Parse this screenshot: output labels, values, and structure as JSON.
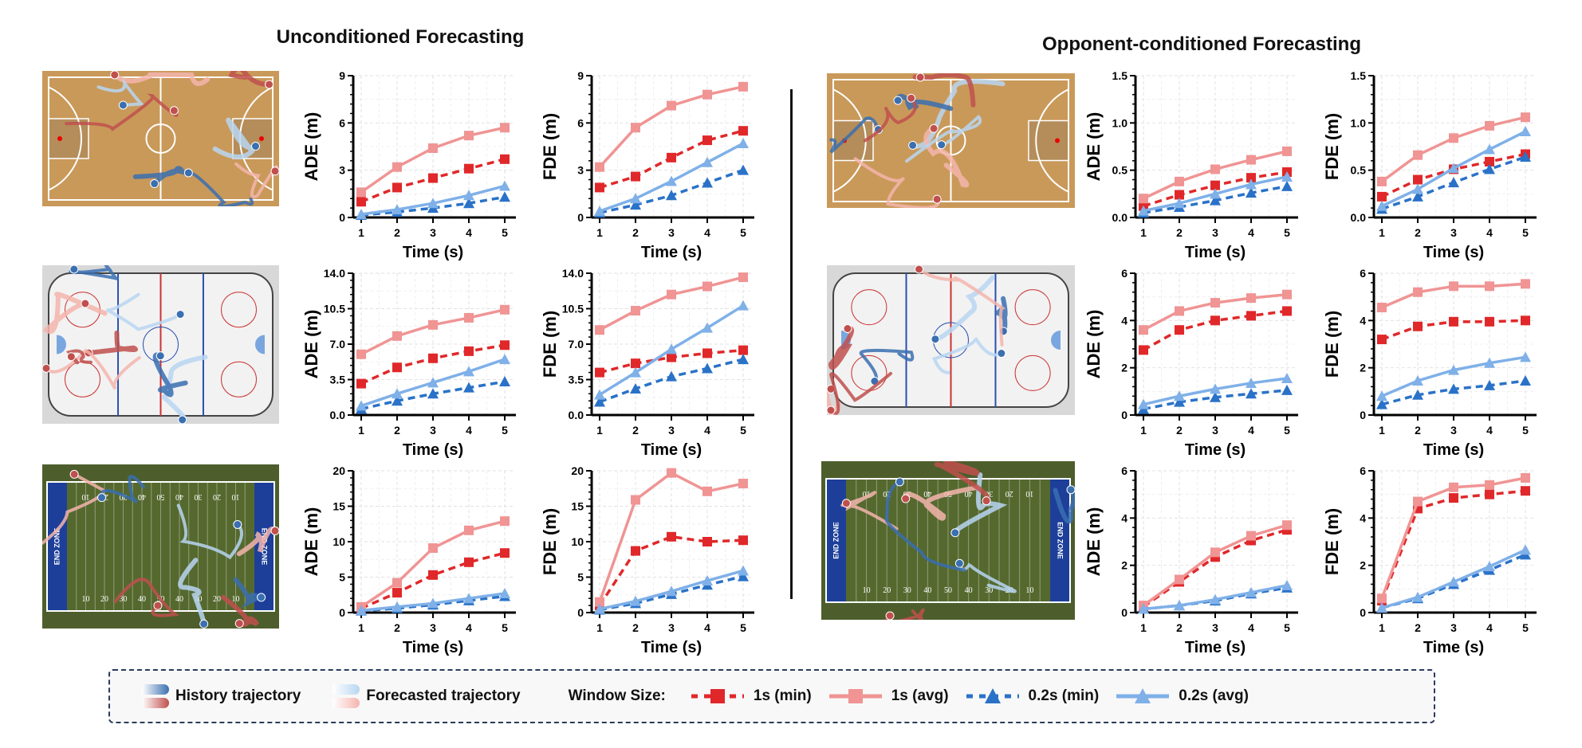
{
  "titles": {
    "left": "Unconditioned Forecasting",
    "right": "Opponent-conditioned Forecasting"
  },
  "colors": {
    "min_1s": "#e0282a",
    "avg_1s": "#f09494",
    "min_02s": "#2a72c8",
    "avg_02s": "#7fb0e8",
    "history_blue": "#3a6fb0",
    "history_red": "#c0504d",
    "forecast_blue": "#b8d6f2",
    "forecast_red": "#f5b5ad"
  },
  "fields": {
    "end_zone": "END ZONE",
    "yard_numbers": [
      "10",
      "20",
      "30",
      "40",
      "50",
      "40",
      "30",
      "20",
      "10"
    ]
  },
  "legend": {
    "history": "History trajectory",
    "forecast": "Forecasted trajectory",
    "window_label": "Window Size:",
    "series": [
      "1s (min)",
      "1s (avg)",
      "0.2s (min)",
      "0.2s (avg)"
    ]
  },
  "chart_data": [
    {
      "id": "uncond-basketball-ade",
      "type": "line",
      "xlabel": "Time (s)",
      "ylabel": "ADE (m)",
      "x": [
        1,
        2,
        3,
        4,
        5
      ],
      "ylim": [
        0,
        9
      ],
      "yticks": [
        "0",
        "3",
        "6",
        "9"
      ],
      "grid": true,
      "series": [
        {
          "name": "1s (min)",
          "values": [
            1.0,
            1.9,
            2.5,
            3.1,
            3.7
          ]
        },
        {
          "name": "1s (avg)",
          "values": [
            1.6,
            3.2,
            4.4,
            5.2,
            5.7
          ]
        },
        {
          "name": "0.2s (min)",
          "values": [
            0.15,
            0.35,
            0.6,
            0.9,
            1.3
          ]
        },
        {
          "name": "0.2s (avg)",
          "values": [
            0.2,
            0.5,
            0.9,
            1.4,
            2.0
          ]
        }
      ]
    },
    {
      "id": "uncond-basketball-fde",
      "type": "line",
      "xlabel": "Time (s)",
      "ylabel": "FDE (m)",
      "x": [
        1,
        2,
        3,
        4,
        5
      ],
      "ylim": [
        0,
        9
      ],
      "yticks": [
        "0",
        "3",
        "6",
        "9"
      ],
      "grid": true,
      "series": [
        {
          "name": "1s (min)",
          "values": [
            1.9,
            2.6,
            3.8,
            4.9,
            5.5
          ]
        },
        {
          "name": "1s (avg)",
          "values": [
            3.2,
            5.7,
            7.1,
            7.8,
            8.3
          ]
        },
        {
          "name": "0.2s (min)",
          "values": [
            0.3,
            0.8,
            1.4,
            2.2,
            3.0
          ]
        },
        {
          "name": "0.2s (avg)",
          "values": [
            0.4,
            1.2,
            2.3,
            3.5,
            4.7
          ]
        }
      ]
    },
    {
      "id": "cond-basketball-ade",
      "type": "line",
      "xlabel": "Time (s)",
      "ylabel": "ADE (m)",
      "x": [
        1,
        2,
        3,
        4,
        5
      ],
      "ylim": [
        0,
        1.5
      ],
      "yticks": [
        "0.0",
        "0.5",
        "1.0",
        "1.5"
      ],
      "grid": true,
      "series": [
        {
          "name": "1s (min)",
          "values": [
            0.12,
            0.24,
            0.34,
            0.42,
            0.48
          ]
        },
        {
          "name": "1s (avg)",
          "values": [
            0.2,
            0.38,
            0.51,
            0.61,
            0.7
          ]
        },
        {
          "name": "0.2s (min)",
          "values": [
            0.05,
            0.11,
            0.18,
            0.26,
            0.33
          ]
        },
        {
          "name": "0.2s (avg)",
          "values": [
            0.07,
            0.15,
            0.25,
            0.35,
            0.43
          ]
        }
      ]
    },
    {
      "id": "cond-basketball-fde",
      "type": "line",
      "xlabel": "Time (s)",
      "ylabel": "FDE (m)",
      "x": [
        1,
        2,
        3,
        4,
        5
      ],
      "ylim": [
        0,
        1.5
      ],
      "yticks": [
        "0.0",
        "0.5",
        "1.0",
        "1.5"
      ],
      "grid": true,
      "series": [
        {
          "name": "1s (min)",
          "values": [
            0.22,
            0.4,
            0.51,
            0.59,
            0.67
          ]
        },
        {
          "name": "1s (avg)",
          "values": [
            0.38,
            0.66,
            0.84,
            0.97,
            1.06
          ]
        },
        {
          "name": "0.2s (min)",
          "values": [
            0.09,
            0.22,
            0.37,
            0.51,
            0.64
          ]
        },
        {
          "name": "0.2s (avg)",
          "values": [
            0.12,
            0.3,
            0.52,
            0.72,
            0.91
          ]
        }
      ]
    },
    {
      "id": "uncond-hockey-ade",
      "type": "line",
      "xlabel": "Time (s)",
      "ylabel": "ADE (m)",
      "x": [
        1,
        2,
        3,
        4,
        5
      ],
      "ylim": [
        0,
        14
      ],
      "yticks": [
        "0.0",
        "3.5",
        "7.0",
        "10.5",
        "14.0"
      ],
      "grid": true,
      "series": [
        {
          "name": "1s (min)",
          "values": [
            3.1,
            4.7,
            5.6,
            6.3,
            6.9
          ]
        },
        {
          "name": "1s (avg)",
          "values": [
            6.0,
            7.8,
            8.9,
            9.6,
            10.4
          ]
        },
        {
          "name": "0.2s (min)",
          "values": [
            0.6,
            1.4,
            2.1,
            2.7,
            3.3
          ]
        },
        {
          "name": "0.2s (avg)",
          "values": [
            0.9,
            2.1,
            3.2,
            4.3,
            5.5
          ]
        }
      ]
    },
    {
      "id": "uncond-hockey-fde",
      "type": "line",
      "xlabel": "Time (s)",
      "ylabel": "FDE (m)",
      "x": [
        1,
        2,
        3,
        4,
        5
      ],
      "ylim": [
        0,
        14
      ],
      "yticks": [
        "0.0",
        "3.5",
        "7.0",
        "10.5",
        "14.0"
      ],
      "grid": true,
      "series": [
        {
          "name": "1s (min)",
          "values": [
            4.2,
            5.1,
            5.7,
            6.1,
            6.4
          ]
        },
        {
          "name": "1s (avg)",
          "values": [
            8.4,
            10.3,
            11.9,
            12.7,
            13.6
          ]
        },
        {
          "name": "0.2s (min)",
          "values": [
            1.3,
            2.6,
            3.8,
            4.6,
            5.5
          ]
        },
        {
          "name": "0.2s (avg)",
          "values": [
            2.0,
            4.2,
            6.5,
            8.6,
            10.8
          ]
        }
      ]
    },
    {
      "id": "cond-hockey-ade",
      "type": "line",
      "xlabel": "Time (s)",
      "ylabel": "ADE (m)",
      "x": [
        1,
        2,
        3,
        4,
        5
      ],
      "ylim": [
        0,
        6
      ],
      "yticks": [
        "0",
        "2",
        "4",
        "6"
      ],
      "grid": true,
      "series": [
        {
          "name": "1s (min)",
          "values": [
            2.75,
            3.6,
            4.0,
            4.2,
            4.4
          ]
        },
        {
          "name": "1s (avg)",
          "values": [
            3.6,
            4.4,
            4.75,
            4.95,
            5.1
          ]
        },
        {
          "name": "0.2s (min)",
          "values": [
            0.25,
            0.55,
            0.75,
            0.9,
            1.05
          ]
        },
        {
          "name": "0.2s (avg)",
          "values": [
            0.45,
            0.8,
            1.1,
            1.35,
            1.55
          ]
        }
      ]
    },
    {
      "id": "cond-hockey-fde",
      "type": "line",
      "xlabel": "Time (s)",
      "ylabel": "FDE (m)",
      "x": [
        1,
        2,
        3,
        4,
        5
      ],
      "ylim": [
        0,
        6
      ],
      "yticks": [
        "0",
        "2",
        "4",
        "6"
      ],
      "grid": true,
      "series": [
        {
          "name": "1s (min)",
          "values": [
            3.2,
            3.75,
            3.95,
            3.95,
            4.0
          ]
        },
        {
          "name": "1s (avg)",
          "values": [
            4.55,
            5.2,
            5.45,
            5.45,
            5.55
          ]
        },
        {
          "name": "0.2s (min)",
          "values": [
            0.45,
            0.85,
            1.1,
            1.25,
            1.45
          ]
        },
        {
          "name": "0.2s (avg)",
          "values": [
            0.8,
            1.45,
            1.9,
            2.2,
            2.45
          ]
        }
      ]
    },
    {
      "id": "uncond-football-ade",
      "type": "line",
      "xlabel": "Time (s)",
      "ylabel": "ADE (m)",
      "x": [
        1,
        2,
        3,
        4,
        5
      ],
      "ylim": [
        0,
        20
      ],
      "yticks": [
        "0",
        "5",
        "10",
        "15",
        "20"
      ],
      "grid": true,
      "series": [
        {
          "name": "1s (min)",
          "values": [
            0.6,
            2.8,
            5.3,
            7.1,
            8.4
          ]
        },
        {
          "name": "1s (avg)",
          "values": [
            0.8,
            4.2,
            9.1,
            11.6,
            12.9
          ]
        },
        {
          "name": "0.2s (min)",
          "values": [
            0.25,
            0.6,
            1.1,
            1.7,
            2.3
          ]
        },
        {
          "name": "0.2s (avg)",
          "values": [
            0.3,
            0.8,
            1.3,
            2.0,
            2.7
          ]
        }
      ]
    },
    {
      "id": "uncond-football-fde",
      "type": "line",
      "xlabel": "Time (s)",
      "ylabel": "FDE (m)",
      "x": [
        1,
        2,
        3,
        4,
        5
      ],
      "ylim": [
        0,
        20
      ],
      "yticks": [
        "0",
        "5",
        "10",
        "15",
        "20"
      ],
      "grid": true,
      "series": [
        {
          "name": "1s (min)",
          "values": [
            1.0,
            8.7,
            10.7,
            10.0,
            10.2
          ]
        },
        {
          "name": "1s (avg)",
          "values": [
            1.5,
            15.9,
            19.7,
            17.1,
            18.2
          ]
        },
        {
          "name": "0.2s (min)",
          "values": [
            0.4,
            1.3,
            2.6,
            3.9,
            5.1
          ]
        },
        {
          "name": "0.2s (avg)",
          "values": [
            0.5,
            1.6,
            3.0,
            4.5,
            5.9
          ]
        }
      ]
    },
    {
      "id": "cond-football-ade",
      "type": "line",
      "xlabel": "Time (s)",
      "ylabel": "ADE (m)",
      "x": [
        1,
        2,
        3,
        4,
        5
      ],
      "ylim": [
        0,
        6
      ],
      "yticks": [
        "0",
        "2",
        "4",
        "6"
      ],
      "grid": true,
      "series": [
        {
          "name": "1s (min)",
          "values": [
            0.25,
            1.3,
            2.35,
            3.05,
            3.5
          ]
        },
        {
          "name": "1s (avg)",
          "values": [
            0.3,
            1.4,
            2.55,
            3.25,
            3.7
          ]
        },
        {
          "name": "0.2s (min)",
          "values": [
            0.15,
            0.3,
            0.5,
            0.8,
            1.05
          ]
        },
        {
          "name": "0.2s (avg)",
          "values": [
            0.15,
            0.3,
            0.55,
            0.85,
            1.15
          ]
        }
      ]
    },
    {
      "id": "cond-football-fde",
      "type": "line",
      "xlabel": "Time (s)",
      "ylabel": "FDE (m)",
      "x": [
        1,
        2,
        3,
        4,
        5
      ],
      "ylim": [
        0,
        6
      ],
      "yticks": [
        "0",
        "2",
        "4",
        "6"
      ],
      "grid": true,
      "series": [
        {
          "name": "1s (min)",
          "values": [
            0.5,
            4.4,
            4.85,
            5.0,
            5.15
          ]
        },
        {
          "name": "1s (avg)",
          "values": [
            0.6,
            4.7,
            5.3,
            5.4,
            5.7
          ]
        },
        {
          "name": "0.2s (min)",
          "values": [
            0.2,
            0.6,
            1.2,
            1.8,
            2.45
          ]
        },
        {
          "name": "0.2s (avg)",
          "values": [
            0.2,
            0.65,
            1.3,
            1.95,
            2.65
          ]
        }
      ]
    }
  ]
}
